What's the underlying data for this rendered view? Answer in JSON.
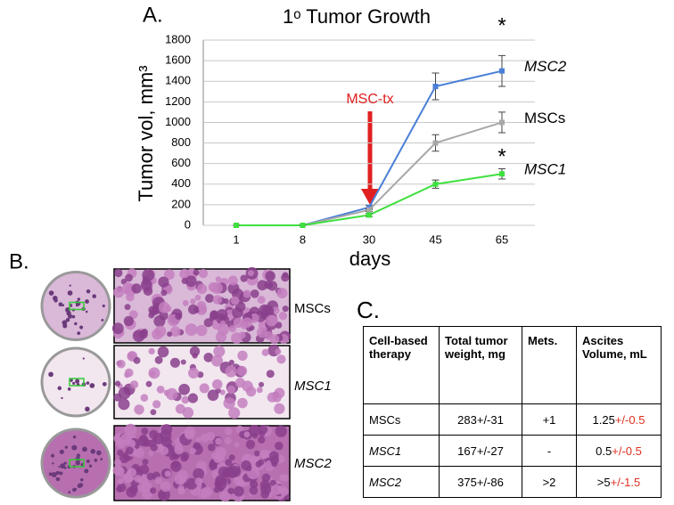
{
  "chart_data": {
    "type": "line",
    "panel_label": "A.",
    "title": "1ᵒ Tumor Growth",
    "y_label": "Tumor vol, mm³",
    "x_label": "days",
    "categories": [
      "1",
      "8",
      "30",
      "45",
      "65"
    ],
    "series": [
      {
        "name": "MSC2",
        "color": "#4a7fd8",
        "font_style": "italic",
        "values": [
          0,
          0,
          175,
          1350,
          1500
        ],
        "errors": [
          0,
          0,
          20,
          130,
          150
        ]
      },
      {
        "name": "MSCs",
        "color": "#a8a8a8",
        "font_style": "normal",
        "values": [
          0,
          0,
          150,
          800,
          1000
        ],
        "errors": [
          0,
          0,
          15,
          80,
          100
        ]
      },
      {
        "name": "MSC1",
        "color": "#3ee03e",
        "font_style": "italic",
        "values": [
          0,
          0,
          100,
          400,
          500
        ],
        "errors": [
          0,
          0,
          15,
          40,
          50
        ]
      }
    ],
    "ylim": [
      0,
      1800
    ],
    "yticks": [
      0,
      200,
      400,
      600,
      800,
      1000,
      1200,
      1400,
      1600,
      1800
    ],
    "grid": true,
    "annotations": [
      {
        "text": "MSC-tx",
        "color": "#e02020"
      },
      {
        "text": "*"
      },
      {
        "text": "*"
      }
    ]
  },
  "panel_b": {
    "label": "B.",
    "rows": [
      "MSCs",
      "MSC1",
      "MSC2"
    ]
  },
  "panel_c": {
    "label": "C.",
    "header": [
      "Cell-based therapy",
      "Total tumor weight, mg",
      "Mets.",
      "Ascites Volume, mL"
    ],
    "rows": [
      {
        "therapy": "MSCs",
        "weight": "283+/-31",
        "mets": "+1",
        "ascites": "1.25",
        "ascites_error": "+/-0.5"
      },
      {
        "therapy": "MSC1",
        "weight": "167+/-27",
        "mets": "-",
        "ascites": "0.5",
        "ascites_error": "+/-0.5"
      },
      {
        "therapy": "MSC2",
        "weight": "375+/-86",
        "mets": ">2",
        "ascites": ">5",
        "ascites_error": "+/-1.5"
      }
    ]
  }
}
